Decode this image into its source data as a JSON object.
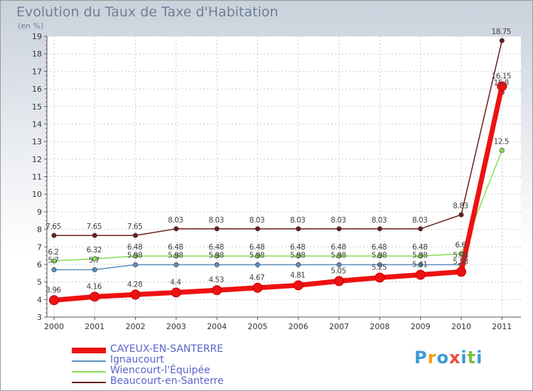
{
  "title": "Evolution du Taux de Taxe d'Habitation",
  "unit_label": "(en %)",
  "logo_text": "Proxiti",
  "chart_data": {
    "type": "line",
    "x": [
      "2000",
      "2001",
      "2002",
      "2003",
      "2004",
      "2005",
      "2006",
      "2007",
      "2008",
      "2009",
      "2010",
      "2011"
    ],
    "ylim": [
      3,
      19
    ],
    "yticks": [
      3,
      4,
      5,
      6,
      7,
      8,
      9,
      10,
      11,
      12,
      13,
      14,
      15,
      16,
      17,
      18,
      19
    ],
    "grid": true,
    "legend_position": "bottom-left",
    "series": [
      {
        "name": "CAYEUX-EN-SANTERRE",
        "color": "#ee1111",
        "values": [
          3.96,
          4.16,
          4.28,
          4.4,
          4.53,
          4.67,
          4.81,
          5.05,
          5.25,
          5.41,
          5.58,
          16.15
        ],
        "labels": [
          "3.96",
          "4.16",
          "4.28",
          "4.4",
          "4.53",
          "4.67",
          "4.81",
          "5.05",
          "5.25",
          "5.41",
          "5.58",
          "16.15"
        ]
      },
      {
        "name": "Ignaucourt",
        "color": "#5b8fbf",
        "values": [
          5.7,
          5.7,
          5.98,
          5.98,
          5.98,
          5.98,
          5.98,
          5.98,
          5.98,
          5.98,
          5.98,
          15.8
        ],
        "labels": [
          "5.7",
          "5.7",
          "5.98",
          "5.98",
          "5.98",
          "5.98",
          "5.98",
          "5.98",
          "5.98",
          "5.98",
          "5.98",
          "15.8"
        ]
      },
      {
        "name": "Wiencourt-l'Équipée",
        "color": "#88dd55",
        "values": [
          6.2,
          6.32,
          6.48,
          6.48,
          6.48,
          6.48,
          6.48,
          6.48,
          6.48,
          6.48,
          6.6,
          12.5
        ],
        "labels": [
          "6.2",
          "6.32",
          "6.48",
          "6.48",
          "6.48",
          "6.48",
          "6.48",
          "6.48",
          "6.48",
          "6.48",
          "6.6",
          "12.5"
        ]
      },
      {
        "name": "Beaucourt-en-Santerre",
        "color": "#6b1e1e",
        "values": [
          7.65,
          7.65,
          7.65,
          8.03,
          8.03,
          8.03,
          8.03,
          8.03,
          8.03,
          8.03,
          8.83,
          18.75
        ],
        "labels": [
          "7.65",
          "7.65",
          "7.65",
          "8.03",
          "8.03",
          "8.03",
          "8.03",
          "8.03",
          "8.03",
          "8.03",
          "8.83",
          "18.75"
        ]
      }
    ]
  }
}
